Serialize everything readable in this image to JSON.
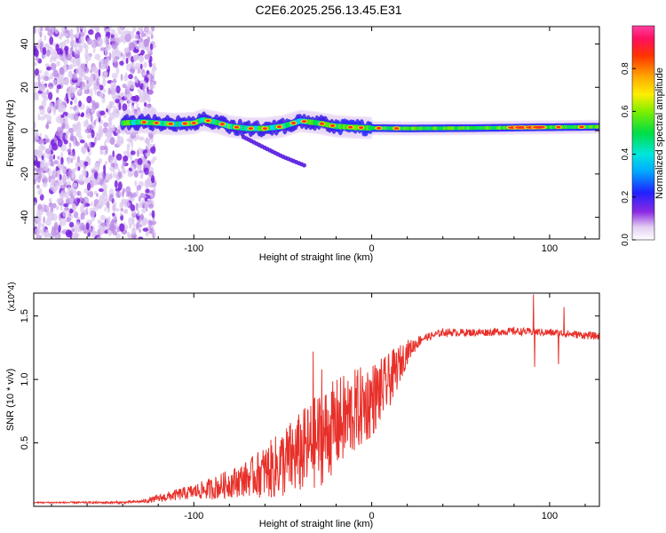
{
  "figure_title": "C2E6.2025.256.13.45.E31",
  "chart_data": [
    {
      "type": "heatmap",
      "title": "C2E6.2025.256.13.45.E31",
      "xlabel": "Height of straight line (km)",
      "ylabel": "Frequency (Hz)",
      "xlim": [
        -190,
        128
      ],
      "ylim": [
        -50,
        48
      ],
      "xticks": [
        -100,
        0,
        100
      ],
      "yticks": [
        -40,
        -20,
        0,
        20,
        40
      ],
      "colorbar": {
        "label": "Normalized spectral amplitude",
        "range": [
          0,
          1
        ],
        "ticks": [
          0.0,
          0.2,
          0.4,
          0.6,
          0.8
        ],
        "colormap": "white-purple-blue-cyan-green-yellow-red-magenta"
      },
      "noise_region_x": [
        -190,
        -122
      ],
      "centerline": [
        {
          "x": -140,
          "y": 3.5
        },
        {
          "x": -130,
          "y": 4
        },
        {
          "x": -120,
          "y": 3.5
        },
        {
          "x": -110,
          "y": 3
        },
        {
          "x": -100,
          "y": 3.5
        },
        {
          "x": -95,
          "y": 5
        },
        {
          "x": -88,
          "y": 4
        },
        {
          "x": -80,
          "y": 2
        },
        {
          "x": -70,
          "y": 1
        },
        {
          "x": -60,
          "y": 1
        },
        {
          "x": -50,
          "y": 2
        },
        {
          "x": -40,
          "y": 4.5
        },
        {
          "x": -30,
          "y": 3.5
        },
        {
          "x": -20,
          "y": 2
        },
        {
          "x": -10,
          "y": 1.5
        },
        {
          "x": 0,
          "y": 1.2
        },
        {
          "x": 20,
          "y": 1
        },
        {
          "x": 60,
          "y": 1.2
        },
        {
          "x": 90,
          "y": 1.5
        },
        {
          "x": 128,
          "y": 1.8
        }
      ],
      "branch": [
        {
          "x": -72,
          "y": -3
        },
        {
          "x": -60,
          "y": -8
        },
        {
          "x": -50,
          "y": -12
        },
        {
          "x": -38,
          "y": -16
        }
      ]
    },
    {
      "type": "line",
      "xlabel": "Height of straight line (km)",
      "ylabel": "SNR (10 * v/v)",
      "y_multiplier": "(x10^4)",
      "xlim": [
        -190,
        128
      ],
      "ylim": [
        0,
        1.68
      ],
      "xticks": [
        -100,
        0,
        100
      ],
      "yticks": [
        0.5,
        1.0,
        1.5
      ],
      "series": [
        {
          "name": "SNR",
          "color": "#e8302a",
          "baseline": [
            {
              "x": -190,
              "y": 0.03
            },
            {
              "x": -140,
              "y": 0.03
            },
            {
              "x": -128,
              "y": 0.04
            },
            {
              "x": -110,
              "y": 0.09
            },
            {
              "x": -90,
              "y": 0.14
            },
            {
              "x": -70,
              "y": 0.22
            },
            {
              "x": -55,
              "y": 0.3
            },
            {
              "x": -40,
              "y": 0.42
            },
            {
              "x": -30,
              "y": 0.52
            },
            {
              "x": -20,
              "y": 0.64
            },
            {
              "x": -10,
              "y": 0.74
            },
            {
              "x": 0,
              "y": 0.84
            },
            {
              "x": 8,
              "y": 0.95
            },
            {
              "x": 14,
              "y": 1.08
            },
            {
              "x": 20,
              "y": 1.22
            },
            {
              "x": 28,
              "y": 1.32
            },
            {
              "x": 40,
              "y": 1.37
            },
            {
              "x": 60,
              "y": 1.37
            },
            {
              "x": 80,
              "y": 1.38
            },
            {
              "x": 100,
              "y": 1.37
            },
            {
              "x": 128,
              "y": 1.34
            }
          ],
          "amplitude": [
            {
              "x": -190,
              "y": 0.005
            },
            {
              "x": -130,
              "y": 0.01
            },
            {
              "x": -120,
              "y": 0.03
            },
            {
              "x": -100,
              "y": 0.06
            },
            {
              "x": -70,
              "y": 0.14
            },
            {
              "x": -50,
              "y": 0.28
            },
            {
              "x": -30,
              "y": 0.38
            },
            {
              "x": -15,
              "y": 0.36
            },
            {
              "x": 0,
              "y": 0.3
            },
            {
              "x": 12,
              "y": 0.2
            },
            {
              "x": 22,
              "y": 0.07
            },
            {
              "x": 30,
              "y": 0.03
            },
            {
              "x": 128,
              "y": 0.03
            }
          ],
          "spikes": [
            {
              "x": 91,
              "y": 1.67
            },
            {
              "x": 91.6,
              "y": 1.1
            },
            {
              "x": 105,
              "y": 1.12
            },
            {
              "x": 108,
              "y": 1.57
            },
            {
              "x": -33,
              "y": 1.22
            },
            {
              "x": -28,
              "y": 1.08
            }
          ]
        }
      ]
    }
  ]
}
